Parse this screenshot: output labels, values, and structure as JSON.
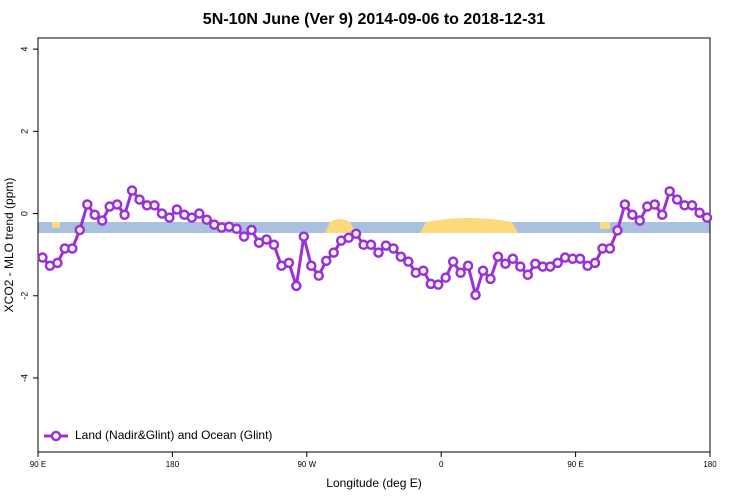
{
  "chart_data": {
    "type": "line",
    "title": "5N-10N June (Ver 9)   2014-09-06 to 2018-12-31",
    "x_label": "Longitude (deg E)",
    "y_label": "XCO2 - MLO trend (ppm)",
    "x": [
      93,
      98,
      103,
      108,
      113,
      118,
      123,
      128,
      133,
      138,
      143,
      148,
      153,
      158,
      163,
      168,
      173,
      178,
      183,
      188,
      193,
      198,
      203,
      208,
      213,
      218,
      223,
      228,
      233,
      238,
      243,
      248,
      253,
      258,
      263,
      268,
      273,
      278,
      283,
      288,
      293,
      298,
      303,
      308,
      313,
      318,
      323,
      328,
      333,
      338,
      343,
      348,
      353,
      358,
      363,
      368,
      373,
      378,
      383,
      388,
      393,
      398,
      403,
      408,
      413,
      418,
      423,
      428,
      433,
      438,
      443,
      448,
      453,
      458,
      463,
      468,
      473,
      478,
      483,
      488,
      493,
      498,
      503,
      508,
      513,
      518,
      523,
      528,
      533,
      538
    ],
    "series": [
      {
        "name": "Land (Nadir&Glint) and Ocean (Glint)",
        "color": "#9b30d9",
        "values": [
          -1.07,
          -1.27,
          -1.2,
          -0.85,
          -0.85,
          -0.4,
          0.22,
          -0.03,
          -0.17,
          0.17,
          0.22,
          -0.03,
          0.56,
          0.34,
          0.2,
          0.2,
          0,
          -0.1,
          0.1,
          -0.03,
          -0.1,
          0,
          -0.15,
          -0.27,
          -0.34,
          -0.32,
          -0.37,
          -0.56,
          -0.4,
          -0.71,
          -0.63,
          -0.76,
          -1.27,
          -1.2,
          -1.76,
          -0.56,
          -1.27,
          -1.51,
          -1.15,
          -0.95,
          -0.66,
          -0.59,
          -0.49,
          -0.76,
          -0.76,
          -0.95,
          -0.78,
          -0.85,
          -1.05,
          -1.17,
          -1.44,
          -1.39,
          -1.71,
          -1.73,
          -1.56,
          -1.17,
          -1.44,
          -1.27,
          -1.98,
          -1.39,
          -1.59,
          -1.05,
          -1.22,
          -1.1,
          -1.29,
          -1.49,
          -1.22,
          -1.29,
          -1.29,
          -1.2,
          -1.07,
          -1.1,
          -1.1,
          -1.27,
          -1.2,
          -0.85,
          -0.85,
          -0.41,
          0.22,
          -0.03,
          -0.17,
          0.17,
          0.22,
          -0.03,
          0.54,
          0.34,
          0.2,
          0.2,
          0.02,
          -0.1
        ]
      }
    ],
    "xlim": [
      90,
      540
    ],
    "xticks": [
      {
        "value": 90,
        "label": "90 E"
      },
      180,
      {
        "value": 270,
        "label": "90 W"
      },
      {
        "value": 360,
        "label": "0"
      },
      {
        "value": 450,
        "label": "90 E"
      },
      {
        "value": 540,
        "label": "180"
      }
    ],
    "ylim": [
      -5.8,
      4.27
    ],
    "yticks": [
      4,
      2,
      0,
      -2,
      -4
    ],
    "legend": "bottom-left"
  }
}
